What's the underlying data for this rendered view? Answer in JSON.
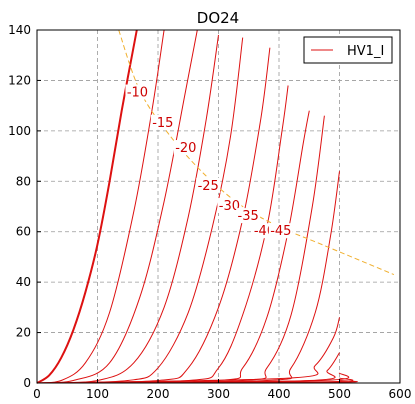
{
  "chart_data": {
    "type": "line",
    "title": "DO24",
    "xlabel": "",
    "ylabel": "",
    "xlim": [
      0,
      600
    ],
    "ylim": [
      0,
      140
    ],
    "x_ticks": [
      "0",
      "100",
      "200",
      "300",
      "400",
      "500",
      "600"
    ],
    "y_ticks": [
      "0",
      "20",
      "40",
      "60",
      "80",
      "100",
      "120",
      "140"
    ],
    "grid": true,
    "legend": {
      "placement": "top-right",
      "entries": [
        "HV1_I"
      ]
    },
    "colors": {
      "curves": "#dd1111",
      "limit": "#f0b030",
      "grid": "#999999"
    },
    "series": [
      {
        "grid_v": 0,
        "label": "",
        "x": [
          0,
          20,
          40,
          60,
          80,
          100,
          120,
          140,
          165
        ],
        "y": [
          0,
          3,
          10,
          21,
          36,
          55,
          80,
          108,
          140
        ]
      },
      {
        "grid_v": -5,
        "label": "",
        "x": [
          0,
          40,
          80,
          120,
          160,
          190,
          210
        ],
        "y": [
          0,
          1,
          8,
          28,
          68,
          108,
          140
        ]
      },
      {
        "grid_v": -10,
        "label": "-10",
        "x": [
          0,
          60,
          120,
          170,
          210,
          245,
          265
        ],
        "y": [
          0,
          1,
          8,
          34,
          72,
          115,
          140
        ]
      },
      {
        "grid_v": -15,
        "label": "-15",
        "x": [
          0,
          100,
          160,
          210,
          250,
          280,
          300
        ],
        "y": [
          0,
          1,
          8,
          30,
          66,
          105,
          138
        ]
      },
      {
        "grid_v": -20,
        "label": "-20",
        "x": [
          0,
          150,
          200,
          250,
          290,
          320,
          340
        ],
        "y": [
          0,
          1,
          6,
          28,
          62,
          98,
          137
        ]
      },
      {
        "grid_v": -25,
        "label": "-25",
        "x": [
          0,
          200,
          250,
          300,
          340,
          370,
          385
        ],
        "y": [
          0,
          1,
          6,
          30,
          65,
          105,
          133
        ]
      },
      {
        "grid_v": -30,
        "label": "-30",
        "x": [
          0,
          250,
          300,
          340,
          380,
          405,
          415
        ],
        "y": [
          0,
          1,
          6,
          27,
          62,
          100,
          118
        ]
      },
      {
        "grid_v": -35,
        "label": "-35",
        "x": [
          0,
          300,
          340,
          380,
          415,
          440,
          450
        ],
        "y": [
          0,
          1,
          6,
          26,
          60,
          95,
          108
        ]
      },
      {
        "grid_v": -40,
        "label": "-40",
        "x": [
          0,
          340,
          380,
          420,
          455,
          475
        ],
        "y": [
          0,
          1,
          6,
          27,
          70,
          106
        ]
      },
      {
        "grid_v": -45,
        "label": "-45",
        "x": [
          0,
          380,
          420,
          460,
          485,
          500
        ],
        "y": [
          0,
          1,
          6,
          28,
          58,
          84
        ]
      },
      {
        "grid_v": -50,
        "label": "",
        "x": [
          0,
          420,
          460,
          490,
          500
        ],
        "y": [
          0,
          2,
          7,
          18,
          26
        ]
      },
      {
        "grid_v": -55,
        "label": "",
        "x": [
          0,
          450,
          480,
          500
        ],
        "y": [
          0,
          1,
          5,
          12
        ]
      },
      {
        "grid_v": -60,
        "label": "",
        "x": [
          0,
          470,
          500
        ],
        "y": [
          0,
          1,
          4
        ]
      },
      {
        "grid_v": -65,
        "label": "",
        "x": [
          0,
          480,
          500
        ],
        "y": [
          0,
          0.5,
          2
        ]
      },
      {
        "grid_v": -70,
        "label": "",
        "x": [
          0,
          490,
          500
        ],
        "y": [
          0,
          0.3,
          1
        ]
      }
    ],
    "limit_curve": {
      "x": [
        135,
        170,
        220,
        280,
        340,
        400,
        460,
        520,
        590
      ],
      "y": [
        140,
        116,
        98,
        82,
        70,
        62,
        56,
        50,
        43
      ]
    }
  }
}
